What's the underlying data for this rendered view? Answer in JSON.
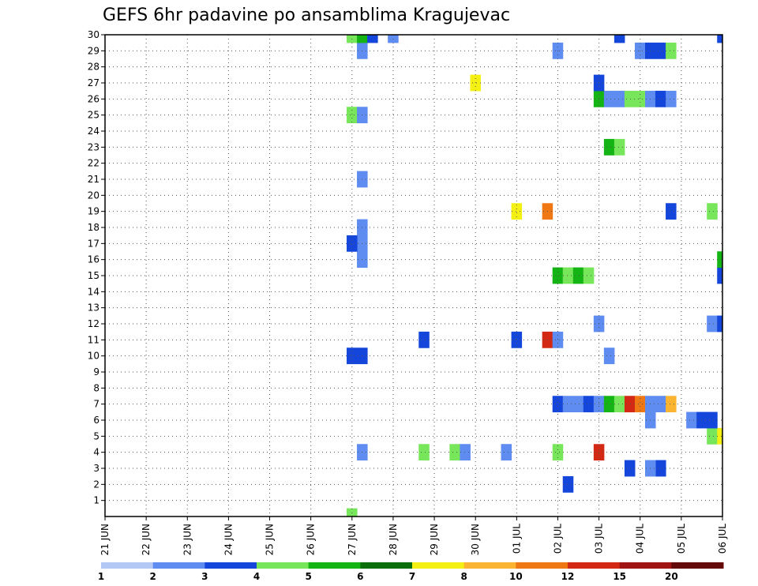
{
  "chart_data": {
    "type": "heatmap",
    "title": "GEFS 6hr padavine po ansamblima Kragujevac",
    "y_ticks": [
      "1",
      "2",
      "3",
      "4",
      "5",
      "6",
      "7",
      "8",
      "9",
      "10",
      "11",
      "12",
      "13",
      "14",
      "15",
      "16",
      "17",
      "18",
      "19",
      "20",
      "21",
      "22",
      "23",
      "24",
      "25",
      "26",
      "27",
      "28",
      "29",
      "30"
    ],
    "x_ticks": [
      "21 JUN",
      "22 JUN",
      "23 JUN",
      "24 JUN",
      "25 JUN",
      "26 JUN",
      "27 JUN",
      "28 JUN",
      "29 JUN",
      "30 JUN",
      "01 JUL",
      "02 JUL",
      "03 JUL",
      "04 JUL",
      "05 JUL",
      "06 JUL"
    ],
    "x_range_days": [
      0,
      15
    ],
    "y_range": [
      0,
      30
    ],
    "grid": true,
    "colorbar": {
      "labels": [
        "1",
        "2",
        "3",
        "4",
        "5",
        "6",
        "7",
        "8",
        "10",
        "12",
        "15",
        "20"
      ],
      "colors": [
        "#b4c8f5",
        "#5f8cf0",
        "#1446dc",
        "#78e65a",
        "#14b414",
        "#0a6e0a",
        "#f5f014",
        "#fab432",
        "#f07814",
        "#d22814",
        "#a01414",
        "#640a0a"
      ]
    },
    "points": [
      [
        6,
        0,
        3
      ],
      [
        6,
        10,
        2
      ],
      [
        6.25,
        10,
        2
      ],
      [
        6.25,
        4,
        1
      ],
      [
        7.75,
        4,
        3
      ],
      [
        8.5,
        4,
        3
      ],
      [
        8.75,
        4,
        1
      ],
      [
        9.75,
        4,
        1
      ],
      [
        11,
        4,
        3
      ],
      [
        12,
        4,
        9
      ],
      [
        11.25,
        2,
        2
      ],
      [
        12.75,
        3,
        2
      ],
      [
        13.5,
        3,
        2
      ],
      [
        13.25,
        3,
        1
      ],
      [
        14.75,
        5,
        3
      ],
      [
        15,
        5,
        6
      ],
      [
        13.25,
        6,
        1
      ],
      [
        14.25,
        6,
        1
      ],
      [
        14.5,
        6,
        2
      ],
      [
        14.75,
        6,
        2
      ],
      [
        11,
        7,
        2
      ],
      [
        11.25,
        7,
        1
      ],
      [
        11.5,
        7,
        1
      ],
      [
        11.75,
        7,
        2
      ],
      [
        12,
        7,
        1
      ],
      [
        12.25,
        7,
        4
      ],
      [
        12.5,
        7,
        3
      ],
      [
        12.75,
        7,
        9
      ],
      [
        13,
        7,
        8
      ],
      [
        13.25,
        7,
        1
      ],
      [
        13.5,
        7,
        1
      ],
      [
        13.75,
        7,
        7
      ],
      [
        7.75,
        11,
        2
      ],
      [
        10,
        11,
        2
      ],
      [
        10.75,
        11,
        9
      ],
      [
        11,
        11,
        1
      ],
      [
        12.25,
        10,
        1
      ],
      [
        12,
        12,
        1
      ],
      [
        14.75,
        12,
        1
      ],
      [
        15,
        12,
        2
      ],
      [
        11,
        15,
        4
      ],
      [
        11.25,
        15,
        3
      ],
      [
        11.5,
        15,
        4
      ],
      [
        11.75,
        15,
        3
      ],
      [
        15,
        15,
        2
      ],
      [
        15,
        16,
        4
      ],
      [
        6.25,
        16,
        1
      ],
      [
        6.25,
        17,
        1
      ],
      [
        6,
        17,
        2
      ],
      [
        6.25,
        18,
        1
      ],
      [
        10,
        19,
        6
      ],
      [
        10.75,
        19,
        8
      ],
      [
        13.75,
        19,
        2
      ],
      [
        14.75,
        19,
        3
      ],
      [
        15.25,
        19,
        1
      ],
      [
        6.25,
        21,
        1
      ],
      [
        15.5,
        21,
        2
      ],
      [
        15.75,
        21,
        9
      ],
      [
        12.25,
        23,
        4
      ],
      [
        12.5,
        23,
        3
      ],
      [
        6,
        25,
        3
      ],
      [
        6.25,
        25,
        1
      ],
      [
        12,
        26,
        4
      ],
      [
        12.25,
        26,
        1
      ],
      [
        12.5,
        26,
        1
      ],
      [
        12.75,
        26,
        3
      ],
      [
        13,
        26,
        3
      ],
      [
        13.25,
        26,
        1
      ],
      [
        13.5,
        26,
        2
      ],
      [
        13.75,
        26,
        1
      ],
      [
        12,
        27,
        2
      ],
      [
        9,
        27,
        6
      ],
      [
        6.25,
        29,
        1
      ],
      [
        11,
        29,
        1
      ],
      [
        13,
        29,
        1
      ],
      [
        13.25,
        29,
        2
      ],
      [
        13.5,
        29,
        2
      ],
      [
        13.75,
        29,
        3
      ],
      [
        6,
        30,
        3
      ],
      [
        6.25,
        30,
        4
      ],
      [
        6.5,
        30,
        2
      ],
      [
        7,
        30,
        1
      ],
      [
        12.5,
        30,
        2
      ],
      [
        15,
        30,
        2
      ]
    ]
  }
}
